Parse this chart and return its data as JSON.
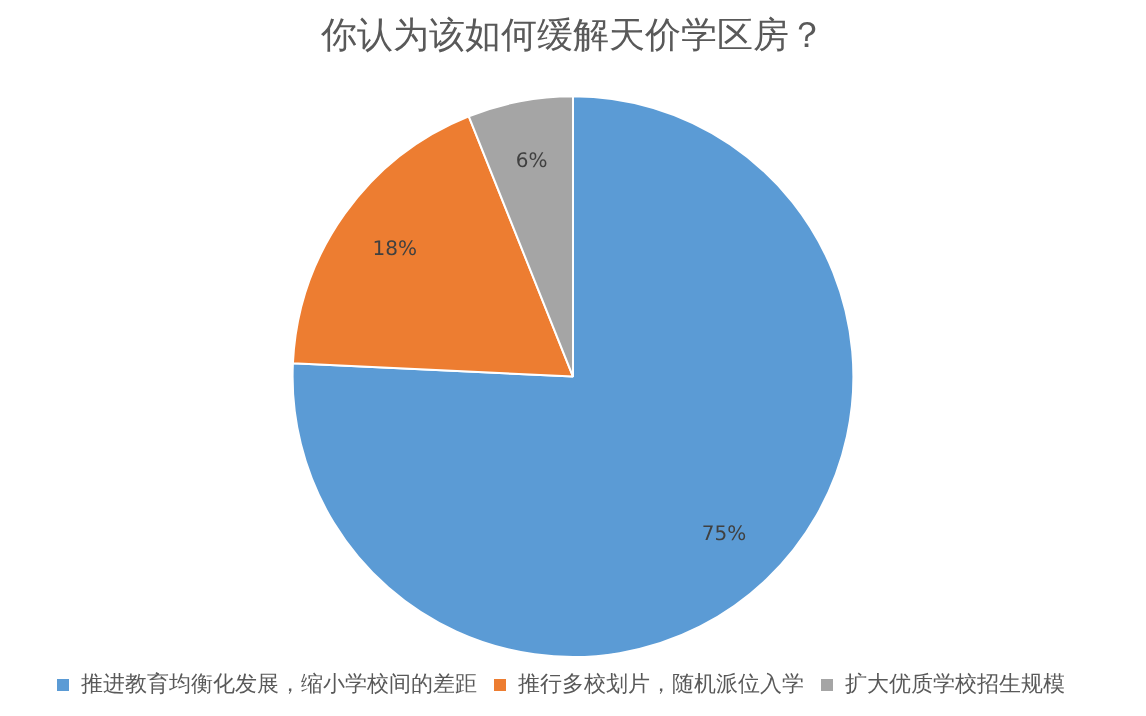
{
  "chart_data": {
    "type": "pie",
    "title": "你认为该如何缓解天价学区房？",
    "categories": [
      "推进教育均衡化发展，缩小学校间的差距",
      "推行多校划片，随机派位入学",
      "扩大优质学校招生规模"
    ],
    "values": [
      75,
      18,
      6
    ],
    "colors": [
      "#5b9bd5",
      "#ed7d31",
      "#a5a5a5"
    ],
    "value_labels": [
      "75%",
      "18%",
      "6%"
    ],
    "legend": "bottom"
  }
}
